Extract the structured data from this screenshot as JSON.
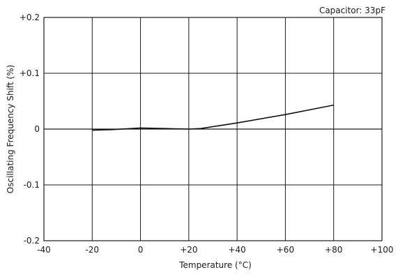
{
  "chart_data": {
    "type": "line",
    "annotation": "Capacitor: 33pF",
    "xlabel": "Temperature (°C)",
    "ylabel": "Oscillating Frequency Shift (%)",
    "xlim": [
      -40,
      100
    ],
    "ylim": [
      -0.2,
      0.2
    ],
    "grid": true,
    "x_ticks": [
      -40,
      -20,
      0,
      20,
      40,
      60,
      80,
      100
    ],
    "x_tick_labels": [
      "-40",
      "-20",
      "0",
      "+20",
      "+40",
      "+60",
      "+80",
      "+100"
    ],
    "y_ticks": [
      -0.2,
      -0.1,
      0,
      0.1,
      0.2
    ],
    "y_tick_labels": [
      "-0.2",
      "-0.1",
      "0",
      "+0.1",
      "+0.2"
    ],
    "series": [
      {
        "x": [
          -20,
          -12,
          0,
          10,
          20,
          25,
          40,
          60,
          80
        ],
        "y": [
          -0.002,
          -0.001,
          0.002,
          0.001,
          0.0,
          0.001,
          0.011,
          0.026,
          0.043
        ]
      }
    ],
    "colors": {
      "line": "#111111",
      "grid": "#1a1a1a",
      "background": "#ffffff"
    }
  }
}
